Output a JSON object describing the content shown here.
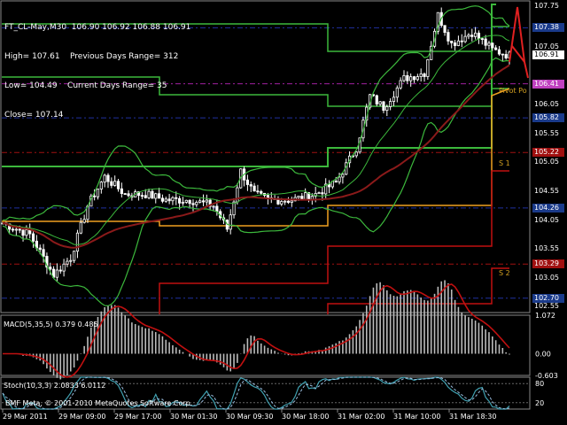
{
  "symbol_line": "FT_CL-May,M30  106.90 106.92 106.88 106.91",
  "high_line": "High= 107.61    Previous Days Range= 312",
  "low_line": "Low= 104.49    Current Days Range= 35",
  "close_line": "Close= 107.14",
  "macd_label": "MACD(5,35,5) 0.379 0.485",
  "stoch_label": "Stoch(10,3,3) 2.0833 6.0112",
  "copyright": "BMF Meta, © 2001-2010 MetaQuotes Software Corp.",
  "pivot_label": "Pivot Po",
  "s1_label": "S 1",
  "s2_label": "S 2",
  "colors": {
    "background": "#000000",
    "green_line": "#3cb83c",
    "red_line": "#c01010",
    "orange_line": "#f0a020",
    "ma_line": "#8b1a1a",
    "macd_signal": "#c01010",
    "stoch_line": "#40a0b0",
    "price_marker": "#1a3a8a",
    "current_price": "#ffffff"
  },
  "price_labels": [
    {
      "text": "107.75",
      "value": 107.75,
      "style": "axis"
    },
    {
      "text": "107.38",
      "value": 107.38,
      "style": "blue"
    },
    {
      "text": "107.05",
      "value": 107.05,
      "style": "axis"
    },
    {
      "text": "106.91",
      "value": 106.91,
      "style": "current"
    },
    {
      "text": "106.41",
      "value": 106.41,
      "style": "pink"
    },
    {
      "text": "106.05",
      "value": 106.05,
      "style": "axis"
    },
    {
      "text": "105.82",
      "value": 105.82,
      "style": "blue"
    },
    {
      "text": "105.55",
      "value": 105.55,
      "style": "axis"
    },
    {
      "text": "105.22",
      "value": 105.22,
      "style": "red"
    },
    {
      "text": "105.05",
      "value": 105.05,
      "style": "axis"
    },
    {
      "text": "104.55",
      "value": 104.55,
      "style": "axis"
    },
    {
      "text": "104.26",
      "value": 104.26,
      "style": "blue"
    },
    {
      "text": "104.05",
      "value": 104.05,
      "style": "axis"
    },
    {
      "text": "103.55",
      "value": 103.55,
      "style": "axis"
    },
    {
      "text": "103.29",
      "value": 103.29,
      "style": "red"
    },
    {
      "text": "103.05",
      "value": 103.05,
      "style": "axis"
    },
    {
      "text": "102.70",
      "value": 102.7,
      "style": "blue"
    },
    {
      "text": "102.55",
      "value": 102.55,
      "style": "axis"
    }
  ],
  "macd_labels": [
    "1.072",
    "0.00",
    "-0.603"
  ],
  "stoch_labels": [
    "80",
    "20"
  ],
  "x_ticks": [
    "29 Mar 2011",
    "29 Mar 09:00",
    "29 Mar 17:00",
    "30 Mar 01:30",
    "30 Mar 09:30",
    "30 Mar 18:00",
    "31 Mar 02:00",
    "31 Mar 10:00",
    "31 Mar 18:30"
  ]
}
